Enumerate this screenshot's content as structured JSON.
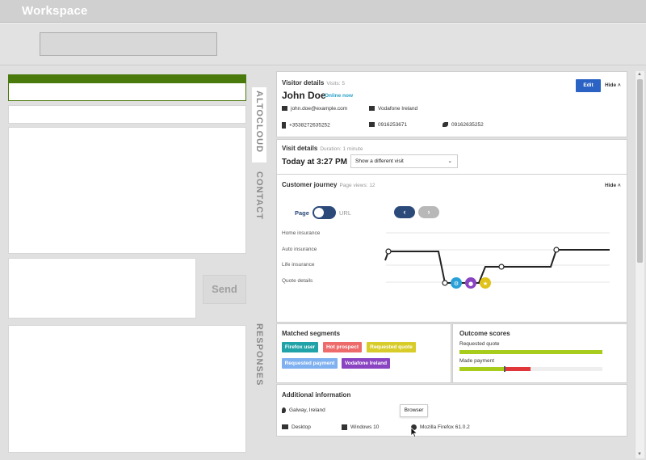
{
  "window": {
    "title": "Workspace"
  },
  "left": {
    "send_label": "Send"
  },
  "tabs": {
    "altocloud": "ALTOCLOUD",
    "contact": "CONTACT",
    "responses": "RESPONSES"
  },
  "visitor": {
    "heading": "Visitor details",
    "visits": "Visits: 5",
    "name": "John Doe",
    "status": "Online now",
    "edit_label": "Edit",
    "hide_label": "Hide",
    "email": "john.doe@example.com",
    "company": "Vodafone Ireland",
    "mobile": "+3538272635252",
    "home_phone": "0916253671",
    "phone": "09162635252"
  },
  "visit": {
    "heading": "Visit details",
    "duration": "Duration: 1 minute",
    "time": "Today at 3:27 PM",
    "select_value": "Show a different visit"
  },
  "journey": {
    "heading": "Customer journey",
    "pageviews": "Page views: 12",
    "hide_label": "Hide",
    "toggle_left": "Page",
    "toggle_right": "URL",
    "rows": [
      "Home insurance",
      "Auto insurance",
      "Life insurance",
      "Quote details"
    ]
  },
  "segments": {
    "heading": "Matched segments",
    "tags": [
      {
        "label": "Firefox user",
        "color": "#1fa3a8"
      },
      {
        "label": "Hot prospect",
        "color": "#ee6b6b"
      },
      {
        "label": "Requested quote",
        "color": "#d8cc2a"
      },
      {
        "label": "Requested payment",
        "color": "#7fb0f0"
      },
      {
        "label": "Vodafone Ireland",
        "color": "#8a44c2"
      }
    ]
  },
  "outcomes": {
    "heading": "Outcome scores",
    "items": [
      {
        "label": "Requested quote",
        "level": 1.0
      },
      {
        "label": "Made payment",
        "level": 0.32
      }
    ]
  },
  "additional": {
    "heading": "Additional information",
    "location": "Galway, Ireland",
    "device": "Desktop",
    "os": "Windows 10",
    "browser": "Mozilla Firefox 61.0.2",
    "tooltip": "Browser"
  },
  "colors": {
    "accent": "#2b63c4",
    "green": "#4a7a0c",
    "lime": "#a8cc1c",
    "red": "#e0373a"
  }
}
